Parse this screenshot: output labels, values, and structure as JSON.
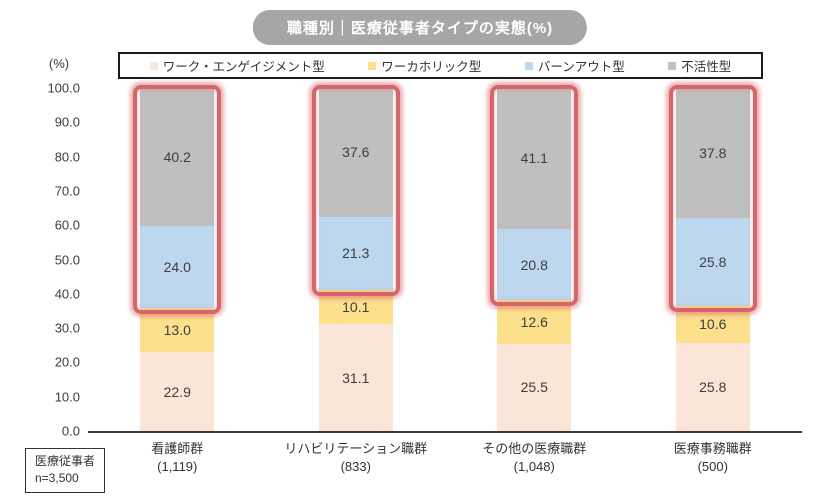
{
  "title": "職種別｜医療従事者タイプの実態(%)",
  "y_axis": {
    "unit_label": "(%)",
    "min": 0,
    "max": 100,
    "step": 10,
    "tick_format": "one_decimal"
  },
  "note_box": {
    "line1": "医療従事者",
    "line2": "n=3,500"
  },
  "colors": {
    "title_pill_bg": "#a6a6a6",
    "engagement": "#fbe5d6",
    "workaholic": "#fce08c",
    "burnout": "#bdd7ee",
    "inactive": "#bfbfbf",
    "highlight_border": "#d4666c",
    "axis_line": "#3a3a3a"
  },
  "chart_data": {
    "type": "bar",
    "subtype": "stacked-percent-column",
    "title": "職種別｜医療従事者タイプの実態(%)",
    "ylabel": "(%)",
    "ylim": [
      0,
      100
    ],
    "ytick_step": 10,
    "grid": false,
    "legend_position": "top",
    "categories": [
      {
        "label": "看護師群",
        "count": "(1,119)"
      },
      {
        "label": "リハビリテーション職群",
        "count": "(833)"
      },
      {
        "label": "その他の医療職群",
        "count": "(1,048)"
      },
      {
        "label": "医療事務職群",
        "count": "(500)"
      }
    ],
    "series": [
      {
        "name": "ワーク・エンゲイジメント型",
        "color": "#fbe5d6",
        "values": [
          22.9,
          31.1,
          25.5,
          25.8
        ]
      },
      {
        "name": "ワーカホリック型",
        "color": "#fce08c",
        "values": [
          13.0,
          10.1,
          12.6,
          10.6
        ]
      },
      {
        "name": "バーンアウト型",
        "color": "#bdd7ee",
        "values": [
          24.0,
          21.3,
          20.8,
          25.8
        ]
      },
      {
        "name": "不活性型",
        "color": "#bfbfbf",
        "values": [
          40.2,
          37.6,
          41.1,
          37.8
        ]
      }
    ],
    "annotations": {
      "highlight_boxes": {
        "description": "red rounded outline around バーンアウト型+不活性型 segments of every bar",
        "series_included": [
          "バーンアウト型",
          "不活性型"
        ],
        "color": "#d4666c",
        "applies_to_bars": [
          0,
          1,
          2,
          3
        ]
      }
    }
  }
}
